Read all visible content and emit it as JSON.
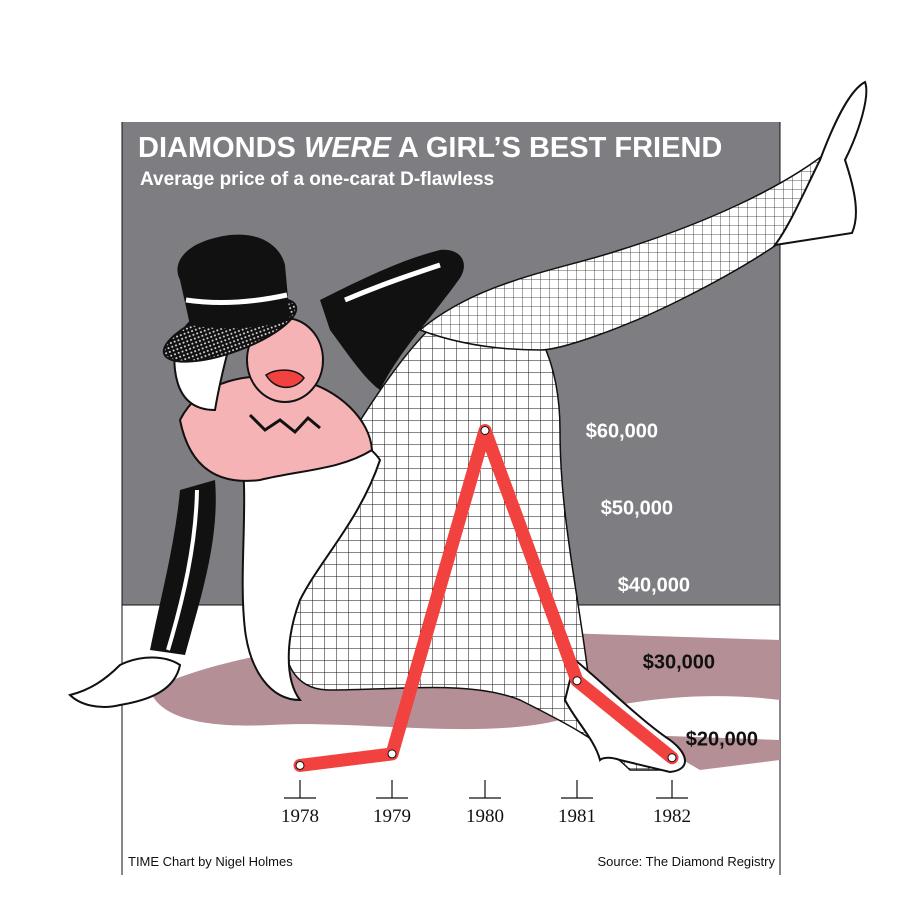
{
  "header": {
    "title_part1": "DIAMONDS ",
    "title_emph": "WERE",
    "title_part2": " A GIRL’S BEST FRIEND",
    "subtitle": "Average price of a one-carat D-flawless"
  },
  "footer": {
    "credit": "TIME Chart by Nigel Holmes",
    "source": "Source: The Diamond Registry"
  },
  "colors": {
    "panel_gray": "#7e7e82",
    "line_red": "#f2423f",
    "skin_pink": "#f6b3b6",
    "shadow_mauve": "#b48f96",
    "ink": "#111111"
  },
  "chart_data": {
    "type": "line",
    "title": "DIAMONDS WERE A GIRL’S BEST FRIEND",
    "subtitle": "Average price of a one-carat D-flawless",
    "x": [
      "1978",
      "1979",
      "1980",
      "1981",
      "1982"
    ],
    "values": [
      16500,
      18000,
      60000,
      27500,
      17500
    ],
    "ylim": [
      15000,
      65000
    ],
    "y_ticks": [
      20000,
      30000,
      40000,
      50000,
      60000
    ],
    "y_tick_labels": [
      "$20,000",
      "$30,000",
      "$40,000",
      "$50,000",
      "$60,000"
    ],
    "grid": true,
    "source": "Source: The Diamond Registry"
  }
}
